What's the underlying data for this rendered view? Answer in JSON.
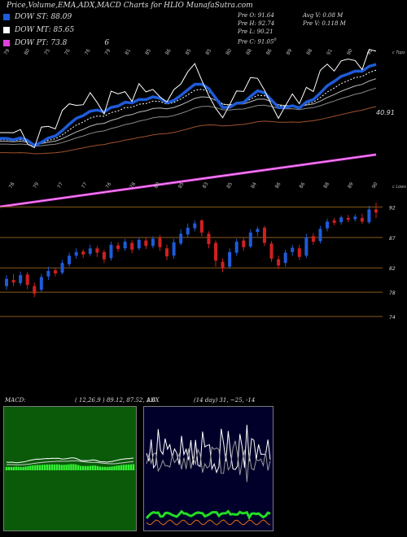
{
  "title": "Price,Volume,EMA,ADX,MACD Charts for HLIO MunafaSutra.com",
  "legend": [
    {
      "label": "DOW ST: 88.09",
      "color": "#1e5bd8"
    },
    {
      "label": "DOW MT: 85.65",
      "color": "#ffffff"
    },
    {
      "label": "DOW PT: 73.8",
      "color": "#e040e0"
    }
  ],
  "legend_extra": "6",
  "ohlc_left": [
    "Pre O: 91.64",
    "Pre H: 92.74",
    "Pre L: 90.21",
    "Pre C: 91.05"
  ],
  "ohlc_left_sup": "0",
  "ohlc_right": [
    "Avg V: 0.08 M",
    "Pre V: 0.118 M"
  ],
  "top_right_label": "c Tops",
  "ema_value_label": "40.91",
  "mid_right_label": "c Lows",
  "price_levels": [
    {
      "label": "92",
      "value": 92
    },
    {
      "label": "87",
      "value": 87
    },
    {
      "label": "82",
      "value": 82
    },
    {
      "label": "78",
      "value": 78
    },
    {
      "label": "74",
      "value": 74
    }
  ],
  "macd_label": "MACD:",
  "macd_values": "( 12,26,9 ) 89.12, 87.52, 1.6",
  "adx_label": "ADX",
  "adx_values": "(14 day) 31, ~25, -14",
  "top_tick_labels": [
    "79",
    "80",
    "75",
    "76",
    "76",
    "79",
    "81",
    "85",
    "86",
    "85",
    "85",
    "80",
    "88",
    "86",
    "89",
    "88",
    "91",
    "90",
    "90"
  ],
  "mid_tick_labels": [
    "78",
    "79",
    "77",
    "77",
    "76",
    "78",
    "80",
    "85",
    "83",
    "85",
    "84",
    "86",
    "86",
    "88",
    "89",
    "90"
  ],
  "chart_data": {
    "type": "candlestick",
    "title": "Price,Volume,EMA,ADX,MACD Charts for HLIO MunafaSutra.com",
    "series": [
      {
        "name": "DOW ST",
        "value": 88.09
      },
      {
        "name": "DOW MT",
        "value": 85.65
      },
      {
        "name": "DOW PT",
        "value": 73.8
      }
    ],
    "ylim": [
      72,
      95
    ],
    "candles": [
      {
        "o": 79.0,
        "c": 80.2,
        "h": 80.8,
        "l": 78.4
      },
      {
        "o": 80.0,
        "c": 79.6,
        "h": 81.0,
        "l": 79.0
      },
      {
        "o": 79.5,
        "c": 80.8,
        "h": 81.4,
        "l": 79.1
      },
      {
        "o": 80.9,
        "c": 79.2,
        "h": 81.3,
        "l": 78.5
      },
      {
        "o": 79.0,
        "c": 77.8,
        "h": 79.6,
        "l": 77.2
      },
      {
        "o": 78.4,
        "c": 80.5,
        "h": 81.0,
        "l": 78.0
      },
      {
        "o": 80.6,
        "c": 81.5,
        "h": 82.2,
        "l": 80.0
      },
      {
        "o": 81.6,
        "c": 81.1,
        "h": 82.0,
        "l": 80.6
      },
      {
        "o": 81.2,
        "c": 82.8,
        "h": 83.3,
        "l": 80.9
      },
      {
        "o": 82.6,
        "c": 84.0,
        "h": 84.5,
        "l": 82.2
      },
      {
        "o": 84.0,
        "c": 84.6,
        "h": 85.2,
        "l": 83.5
      },
      {
        "o": 84.7,
        "c": 84.2,
        "h": 85.1,
        "l": 83.6
      },
      {
        "o": 84.3,
        "c": 85.2,
        "h": 85.8,
        "l": 83.9
      },
      {
        "o": 85.2,
        "c": 84.5,
        "h": 85.6,
        "l": 83.8
      },
      {
        "o": 84.6,
        "c": 83.4,
        "h": 85.0,
        "l": 82.8
      },
      {
        "o": 83.6,
        "c": 85.8,
        "h": 86.3,
        "l": 83.2
      },
      {
        "o": 85.7,
        "c": 85.1,
        "h": 86.2,
        "l": 84.6
      },
      {
        "o": 85.2,
        "c": 86.3,
        "h": 86.8,
        "l": 84.8
      },
      {
        "o": 86.1,
        "c": 85.0,
        "h": 86.5,
        "l": 84.4
      },
      {
        "o": 85.2,
        "c": 86.6,
        "h": 87.0,
        "l": 84.9
      },
      {
        "o": 86.5,
        "c": 85.6,
        "h": 87.0,
        "l": 85.1
      },
      {
        "o": 85.6,
        "c": 86.8,
        "h": 87.2,
        "l": 85.2
      },
      {
        "o": 86.9,
        "c": 85.4,
        "h": 87.4,
        "l": 84.8
      },
      {
        "o": 85.2,
        "c": 83.9,
        "h": 85.8,
        "l": 83.3
      },
      {
        "o": 84.0,
        "c": 86.2,
        "h": 86.8,
        "l": 83.5
      },
      {
        "o": 86.0,
        "c": 87.6,
        "h": 88.3,
        "l": 85.7
      },
      {
        "o": 87.5,
        "c": 88.6,
        "h": 89.3,
        "l": 87.0
      },
      {
        "o": 88.5,
        "c": 89.3,
        "h": 89.8,
        "l": 88.0
      },
      {
        "o": 89.8,
        "c": 87.8,
        "h": 90.0,
        "l": 87.2
      },
      {
        "o": 87.6,
        "c": 85.9,
        "h": 88.0,
        "l": 85.2
      },
      {
        "o": 86.1,
        "c": 83.2,
        "h": 86.5,
        "l": 82.2
      },
      {
        "o": 83.0,
        "c": 81.9,
        "h": 83.5,
        "l": 81.3
      },
      {
        "o": 82.2,
        "c": 84.6,
        "h": 85.2,
        "l": 81.8
      },
      {
        "o": 84.5,
        "c": 86.3,
        "h": 86.8,
        "l": 84.0
      },
      {
        "o": 86.5,
        "c": 85.4,
        "h": 87.0,
        "l": 84.8
      },
      {
        "o": 85.5,
        "c": 87.8,
        "h": 88.3,
        "l": 85.2
      },
      {
        "o": 87.9,
        "c": 88.4,
        "h": 88.8,
        "l": 87.2
      },
      {
        "o": 88.6,
        "c": 86.1,
        "h": 88.9,
        "l": 85.6
      },
      {
        "o": 86.0,
        "c": 83.5,
        "h": 86.4,
        "l": 83.0
      },
      {
        "o": 83.4,
        "c": 82.4,
        "h": 84.0,
        "l": 81.8
      },
      {
        "o": 82.8,
        "c": 84.5,
        "h": 85.0,
        "l": 82.2
      },
      {
        "o": 84.6,
        "c": 85.3,
        "h": 85.8,
        "l": 84.0
      },
      {
        "o": 85.2,
        "c": 83.8,
        "h": 85.8,
        "l": 83.3
      },
      {
        "o": 84.0,
        "c": 87.0,
        "h": 87.6,
        "l": 83.6
      },
      {
        "o": 87.2,
        "c": 86.3,
        "h": 87.7,
        "l": 85.8
      },
      {
        "o": 86.4,
        "c": 88.4,
        "h": 88.9,
        "l": 86.0
      },
      {
        "o": 88.5,
        "c": 89.6,
        "h": 90.1,
        "l": 88.0
      },
      {
        "o": 89.8,
        "c": 89.4,
        "h": 90.2,
        "l": 89.0
      },
      {
        "o": 89.5,
        "c": 90.3,
        "h": 90.6,
        "l": 89.1
      },
      {
        "o": 90.2,
        "c": 89.9,
        "h": 90.7,
        "l": 89.5
      },
      {
        "o": 90.0,
        "c": 90.4,
        "h": 90.8,
        "l": 89.6
      },
      {
        "o": 90.2,
        "c": 89.6,
        "h": 90.9,
        "l": 89.2
      },
      {
        "o": 89.5,
        "c": 91.6,
        "h": 92.2,
        "l": 89.2
      },
      {
        "o": 91.6,
        "c": 91.1,
        "h": 92.7,
        "l": 90.2
      }
    ]
  },
  "colors": {
    "up": "#1e5bd8",
    "down": "#d02020",
    "level_line": "#8a5a1a",
    "macd_bg": "#0a5a0a",
    "adx_bg": "#00002a"
  }
}
